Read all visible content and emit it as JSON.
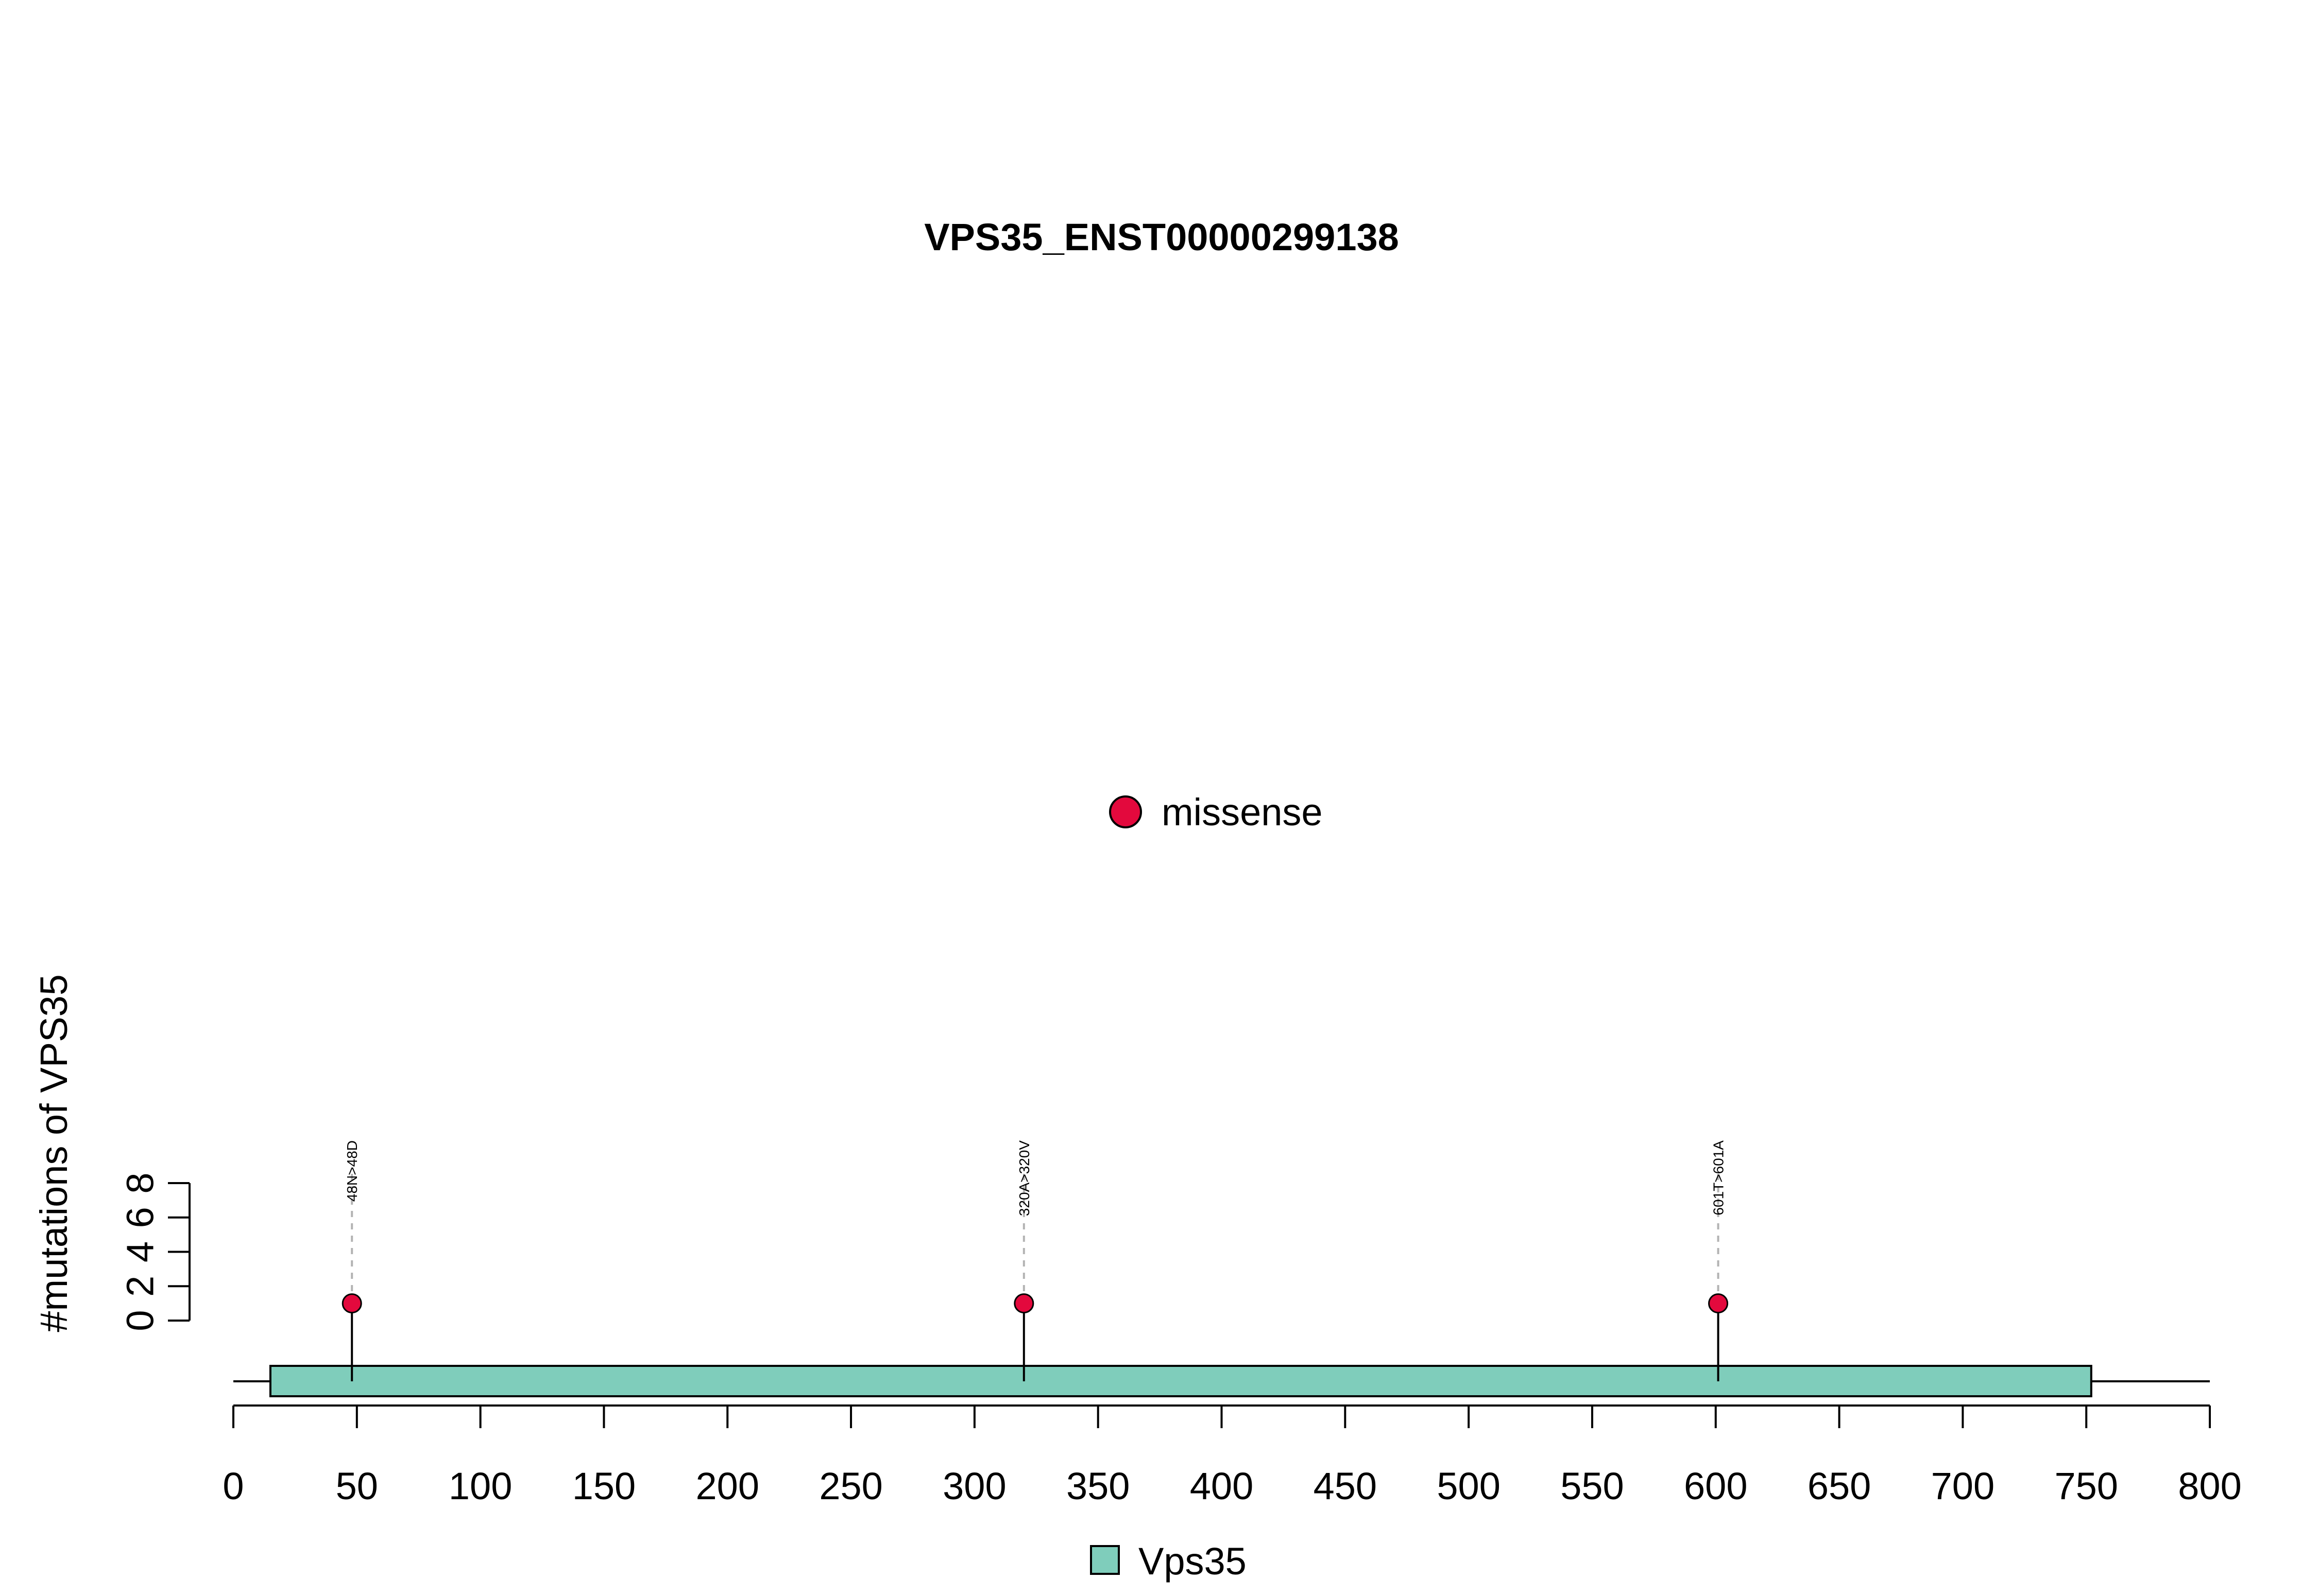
{
  "chart_data": {
    "type": "lollipop",
    "title": "VPS35_ENST00000299138",
    "ylabel": "#mutations of VPS35",
    "xlim": [
      0,
      800
    ],
    "xticks": [
      0,
      50,
      100,
      150,
      200,
      250,
      300,
      350,
      400,
      450,
      500,
      550,
      600,
      650,
      700,
      750,
      800
    ],
    "ylim": [
      0,
      8
    ],
    "yticks": [
      0,
      2,
      4,
      6,
      8
    ],
    "protein_range": [
      0,
      800
    ],
    "domains": [
      {
        "name": "Vps35",
        "start": 15,
        "end": 752,
        "color": "#7fcdbb"
      }
    ],
    "mutation_legend": [
      {
        "label": "missense",
        "color": "#e3093d"
      }
    ],
    "domain_legend": [
      {
        "label": "Vps35",
        "color": "#7fcdbb"
      }
    ],
    "mutations": [
      {
        "position": 48,
        "count": 1,
        "label": "48N>48D",
        "type": "missense"
      },
      {
        "position": 320,
        "count": 1,
        "label": "320A>320V",
        "type": "missense"
      },
      {
        "position": 601,
        "count": 1,
        "label": "601T>601A",
        "type": "missense"
      }
    ]
  }
}
